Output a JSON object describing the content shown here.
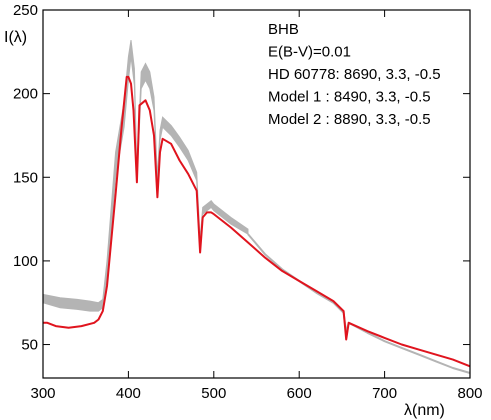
{
  "chart_data": {
    "type": "line",
    "xlabel": "λ(nm)",
    "ylabel": "I(λ)",
    "xlim": [
      300,
      800
    ],
    "ylim": [
      30,
      250
    ],
    "x_ticks": [
      "300",
      "400",
      "500",
      "600",
      "700",
      "800"
    ],
    "y_ticks": [
      "50",
      "100",
      "150",
      "200",
      "250"
    ],
    "x_tick_values": [
      300,
      400,
      500,
      600,
      700,
      800
    ],
    "y_tick_values": [
      50,
      100,
      150,
      200,
      250
    ],
    "grid": false,
    "annotations": [
      "BHB",
      "E(B-V)=0.01",
      "HD 60778: 8690, 3.3, -0.5",
      "Model 1   : 8490, 3.3, -0.5",
      "Model 2   : 8890, 3.3, -0.5"
    ],
    "colors": {
      "observed_band": "#b4b4b4",
      "model_gray": "#b4b4b4",
      "model_red": "#e0141e"
    },
    "series": [
      {
        "style": "band",
        "color": "#b4b4b4",
        "x": [
          300,
          320,
          340,
          355,
          365,
          370,
          375,
          385,
          395,
          400,
          403,
          407,
          410,
          415,
          420,
          425,
          430,
          434,
          437,
          440,
          450,
          460,
          470,
          480,
          484,
          487,
          492,
          497,
          500,
          520,
          540
        ],
        "lower": [
          75,
          72,
          71,
          70,
          70,
          72,
          90,
          150,
          180,
          208,
          222,
          205,
          148,
          203,
          208,
          203,
          190,
          145,
          172,
          180,
          175,
          168,
          160,
          148,
          110,
          128,
          130,
          132,
          130,
          122,
          116
        ],
        "upper": [
          80,
          78,
          77,
          76,
          75,
          77,
          100,
          165,
          195,
          222,
          232,
          215,
          153,
          213,
          218,
          213,
          198,
          150,
          178,
          186,
          181,
          174,
          166,
          153,
          113,
          132,
          134,
          136,
          134,
          126,
          119
        ]
      },
      {
        "style": "line",
        "color": "#b4b4b4",
        "x": [
          540,
          560,
          580,
          600,
          620,
          640,
          652,
          655,
          658,
          680,
          700,
          720,
          740,
          760,
          780,
          800
        ],
        "y": [
          116,
          104,
          95,
          88,
          81,
          75,
          69,
          57,
          63,
          57,
          52,
          48,
          44,
          40,
          36,
          33
        ]
      },
      {
        "style": "line",
        "color": "#e0141e",
        "x": [
          300,
          305,
          315,
          330,
          345,
          360,
          365,
          370,
          375,
          385,
          392,
          398,
          400,
          403,
          406,
          410,
          413,
          420,
          425,
          430,
          434,
          437,
          440,
          450,
          460,
          470,
          480,
          484,
          487,
          492,
          497,
          500,
          520,
          540,
          560,
          580,
          600,
          620,
          640,
          652,
          655,
          658,
          680,
          700,
          720,
          740,
          760,
          780,
          800
        ],
        "y": [
          63,
          63,
          61,
          60,
          61,
          63,
          65,
          70,
          85,
          140,
          180,
          210,
          210,
          206,
          190,
          147,
          193,
          196,
          190,
          175,
          138,
          165,
          173,
          170,
          160,
          152,
          142,
          105,
          126,
          129,
          129,
          128,
          120,
          111,
          102,
          94,
          88,
          82,
          76,
          70,
          53,
          63,
          58,
          54,
          50,
          47,
          44,
          41,
          37
        ]
      }
    ]
  }
}
